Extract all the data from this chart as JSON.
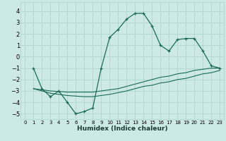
{
  "xlabel": "Humidex (Indice chaleur)",
  "xlim": [
    -0.5,
    23.5
  ],
  "ylim": [
    -5.5,
    4.8
  ],
  "xticks": [
    0,
    1,
    2,
    3,
    4,
    5,
    6,
    7,
    8,
    9,
    10,
    11,
    12,
    13,
    14,
    15,
    16,
    17,
    18,
    19,
    20,
    21,
    22,
    23
  ],
  "yticks": [
    -5,
    -4,
    -3,
    -2,
    -1,
    0,
    1,
    2,
    3,
    4
  ],
  "bg_color": "#cce9e5",
  "grid_color": "#a8d4ce",
  "line_color": "#1a6b5a",
  "line1_x": [
    1,
    2,
    3,
    4,
    5,
    6,
    7,
    8,
    9,
    10,
    11,
    12,
    13,
    14,
    15,
    16,
    17,
    18,
    19,
    20,
    21,
    22,
    23
  ],
  "line1_y": [
    -1.0,
    -2.8,
    -3.5,
    -3.0,
    -4.0,
    -5.0,
    -4.8,
    -4.5,
    -1.0,
    1.7,
    2.4,
    3.3,
    3.8,
    3.8,
    2.7,
    1.0,
    0.5,
    1.5,
    1.6,
    1.6,
    0.5,
    -0.8,
    -1.0
  ],
  "line2_x": [
    1,
    2,
    3,
    4,
    5,
    6,
    7,
    8,
    9,
    10,
    11,
    12,
    13,
    14,
    15,
    16,
    17,
    18,
    19,
    20,
    21,
    22,
    23
  ],
  "line2_y": [
    -2.8,
    -2.9,
    -3.0,
    -3.05,
    -3.1,
    -3.1,
    -3.1,
    -3.1,
    -3.0,
    -2.9,
    -2.8,
    -2.6,
    -2.4,
    -2.2,
    -2.0,
    -1.8,
    -1.7,
    -1.5,
    -1.4,
    -1.2,
    -1.1,
    -1.0,
    -1.0
  ],
  "line3_x": [
    1,
    2,
    3,
    4,
    5,
    6,
    7,
    8,
    9,
    10,
    11,
    12,
    13,
    14,
    15,
    16,
    17,
    18,
    19,
    20,
    21,
    22,
    23
  ],
  "line3_y": [
    -2.8,
    -3.0,
    -3.2,
    -3.3,
    -3.4,
    -3.45,
    -3.5,
    -3.5,
    -3.4,
    -3.3,
    -3.15,
    -3.0,
    -2.8,
    -2.6,
    -2.5,
    -2.3,
    -2.2,
    -2.0,
    -1.9,
    -1.7,
    -1.5,
    -1.4,
    -1.2
  ]
}
